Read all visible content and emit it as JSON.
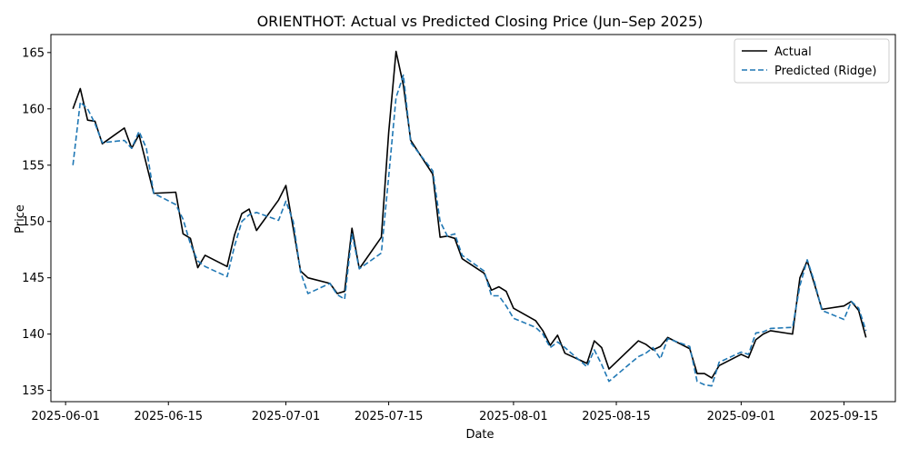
{
  "chart_data": {
    "type": "line",
    "title": "ORIENTHOT: Actual vs Predicted Closing Price (Jun–Sep 2025)",
    "xlabel": "Date",
    "ylabel": "Price",
    "x_ticks": [
      {
        "date": "2025-06-01",
        "label": "2025-06-01"
      },
      {
        "date": "2025-06-15",
        "label": "2025-06-15"
      },
      {
        "date": "2025-07-01",
        "label": "2025-07-01"
      },
      {
        "date": "2025-07-15",
        "label": "2025-07-15"
      },
      {
        "date": "2025-08-01",
        "label": "2025-08-01"
      },
      {
        "date": "2025-08-15",
        "label": "2025-08-15"
      },
      {
        "date": "2025-09-01",
        "label": "2025-09-01"
      },
      {
        "date": "2025-09-15",
        "label": "2025-09-15"
      }
    ],
    "y_ticks": [
      135,
      140,
      145,
      150,
      155,
      160,
      165
    ],
    "xlim": [
      "2025-05-30",
      "2025-09-22"
    ],
    "ylim": [
      134,
      166.6
    ],
    "grid": false,
    "legend": "top-right",
    "series": [
      {
        "name": "Actual",
        "color": "#000000",
        "style": "solid",
        "points": [
          [
            "2025-06-02",
            160.0
          ],
          [
            "2025-06-03",
            161.8
          ],
          [
            "2025-06-04",
            159.0
          ],
          [
            "2025-06-05",
            158.9
          ],
          [
            "2025-06-06",
            156.9
          ],
          [
            "2025-06-09",
            158.3
          ],
          [
            "2025-06-10",
            156.5
          ],
          [
            "2025-06-11",
            157.7
          ],
          [
            "2025-06-13",
            152.5
          ],
          [
            "2025-06-16",
            152.6
          ],
          [
            "2025-06-17",
            148.9
          ],
          [
            "2025-06-18",
            148.5
          ],
          [
            "2025-06-19",
            145.9
          ],
          [
            "2025-06-20",
            147.0
          ],
          [
            "2025-06-23",
            146.0
          ],
          [
            "2025-06-24",
            148.8
          ],
          [
            "2025-06-25",
            150.7
          ],
          [
            "2025-06-26",
            151.1
          ],
          [
            "2025-06-27",
            149.2
          ],
          [
            "2025-06-30",
            151.9
          ],
          [
            "2025-07-01",
            153.2
          ],
          [
            "2025-07-03",
            145.6
          ],
          [
            "2025-07-04",
            145.0
          ],
          [
            "2025-07-07",
            144.5
          ],
          [
            "2025-07-08",
            143.6
          ],
          [
            "2025-07-09",
            143.8
          ],
          [
            "2025-07-10",
            149.4
          ],
          [
            "2025-07-11",
            145.8
          ],
          [
            "2025-07-14",
            148.6
          ],
          [
            "2025-07-15",
            157.9
          ],
          [
            "2025-07-16",
            165.1
          ],
          [
            "2025-07-17",
            162.1
          ],
          [
            "2025-07-18",
            157.2
          ],
          [
            "2025-07-21",
            154.2
          ],
          [
            "2025-07-22",
            148.6
          ],
          [
            "2025-07-23",
            148.7
          ],
          [
            "2025-07-24",
            148.5
          ],
          [
            "2025-07-25",
            146.7
          ],
          [
            "2025-07-28",
            145.4
          ],
          [
            "2025-07-29",
            143.9
          ],
          [
            "2025-07-30",
            144.2
          ],
          [
            "2025-07-31",
            143.8
          ],
          [
            "2025-08-01",
            142.3
          ],
          [
            "2025-08-04",
            141.2
          ],
          [
            "2025-08-05",
            140.3
          ],
          [
            "2025-08-06",
            139.0
          ],
          [
            "2025-08-07",
            139.9
          ],
          [
            "2025-08-08",
            138.3
          ],
          [
            "2025-08-11",
            137.4
          ],
          [
            "2025-08-12",
            139.4
          ],
          [
            "2025-08-13",
            138.8
          ],
          [
            "2025-08-14",
            136.9
          ],
          [
            "2025-08-18",
            139.4
          ],
          [
            "2025-08-19",
            139.1
          ],
          [
            "2025-08-20",
            138.6
          ],
          [
            "2025-08-21",
            138.9
          ],
          [
            "2025-08-22",
            139.7
          ],
          [
            "2025-08-25",
            138.7
          ],
          [
            "2025-08-26",
            136.5
          ],
          [
            "2025-08-27",
            136.5
          ],
          [
            "2025-08-28",
            136.1
          ],
          [
            "2025-08-29",
            137.2
          ],
          [
            "2025-09-01",
            138.2
          ],
          [
            "2025-09-02",
            137.9
          ],
          [
            "2025-09-03",
            139.5
          ],
          [
            "2025-09-04",
            140.0
          ],
          [
            "2025-09-05",
            140.3
          ],
          [
            "2025-09-08",
            140.0
          ],
          [
            "2025-09-09",
            145.0
          ],
          [
            "2025-09-10",
            146.5
          ],
          [
            "2025-09-11",
            144.4
          ],
          [
            "2025-09-12",
            142.2
          ],
          [
            "2025-09-15",
            142.5
          ],
          [
            "2025-09-16",
            142.9
          ],
          [
            "2025-09-17",
            142.1
          ],
          [
            "2025-09-18",
            139.7
          ]
        ]
      },
      {
        "name": "Predicted (Ridge)",
        "color": "#1f77b4",
        "style": "dashed",
        "points": [
          [
            "2025-06-02",
            155.0
          ],
          [
            "2025-06-03",
            160.6
          ],
          [
            "2025-06-04",
            160.0
          ],
          [
            "2025-06-05",
            158.7
          ],
          [
            "2025-06-06",
            157.0
          ],
          [
            "2025-06-09",
            157.2
          ],
          [
            "2025-06-10",
            156.5
          ],
          [
            "2025-06-11",
            158.0
          ],
          [
            "2025-06-12",
            156.5
          ],
          [
            "2025-06-13",
            152.5
          ],
          [
            "2025-06-16",
            151.5
          ],
          [
            "2025-06-17",
            150.2
          ],
          [
            "2025-06-18",
            148.0
          ],
          [
            "2025-06-19",
            146.5
          ],
          [
            "2025-06-20",
            146.0
          ],
          [
            "2025-06-23",
            145.1
          ],
          [
            "2025-06-24",
            147.8
          ],
          [
            "2025-06-25",
            150.0
          ],
          [
            "2025-06-26",
            150.6
          ],
          [
            "2025-06-27",
            150.8
          ],
          [
            "2025-06-30",
            150.1
          ],
          [
            "2025-07-01",
            151.8
          ],
          [
            "2025-07-02",
            150.0
          ],
          [
            "2025-07-03",
            145.5
          ],
          [
            "2025-07-04",
            143.6
          ],
          [
            "2025-07-07",
            144.5
          ],
          [
            "2025-07-08",
            143.5
          ],
          [
            "2025-07-09",
            143.1
          ],
          [
            "2025-07-10",
            148.9
          ],
          [
            "2025-07-11",
            145.8
          ],
          [
            "2025-07-14",
            147.2
          ],
          [
            "2025-07-15",
            154.0
          ],
          [
            "2025-07-16",
            161.0
          ],
          [
            "2025-07-17",
            163.0
          ],
          [
            "2025-07-18",
            157.0
          ],
          [
            "2025-07-21",
            154.5
          ],
          [
            "2025-07-22",
            150.0
          ],
          [
            "2025-07-23",
            148.7
          ],
          [
            "2025-07-24",
            148.9
          ],
          [
            "2025-07-25",
            147.0
          ],
          [
            "2025-07-28",
            145.6
          ],
          [
            "2025-07-29",
            143.4
          ],
          [
            "2025-07-30",
            143.4
          ],
          [
            "2025-07-31",
            142.5
          ],
          [
            "2025-08-01",
            141.4
          ],
          [
            "2025-08-04",
            140.6
          ],
          [
            "2025-08-05",
            140.0
          ],
          [
            "2025-08-06",
            138.8
          ],
          [
            "2025-08-07",
            139.3
          ],
          [
            "2025-08-08",
            138.8
          ],
          [
            "2025-08-11",
            137.1
          ],
          [
            "2025-08-12",
            138.6
          ],
          [
            "2025-08-13",
            137.3
          ],
          [
            "2025-08-14",
            135.8
          ],
          [
            "2025-08-18",
            138.0
          ],
          [
            "2025-08-19",
            138.3
          ],
          [
            "2025-08-20",
            138.8
          ],
          [
            "2025-08-21",
            137.8
          ],
          [
            "2025-08-22",
            139.6
          ],
          [
            "2025-08-25",
            138.9
          ],
          [
            "2025-08-26",
            135.8
          ],
          [
            "2025-08-27",
            135.5
          ],
          [
            "2025-08-28",
            135.4
          ],
          [
            "2025-08-29",
            137.5
          ],
          [
            "2025-09-01",
            138.4
          ],
          [
            "2025-09-02",
            138.2
          ],
          [
            "2025-09-03",
            140.1
          ],
          [
            "2025-09-04",
            140.2
          ],
          [
            "2025-09-05",
            140.5
          ],
          [
            "2025-09-08",
            140.6
          ],
          [
            "2025-09-09",
            144.3
          ],
          [
            "2025-09-10",
            146.6
          ],
          [
            "2025-09-11",
            144.6
          ],
          [
            "2025-09-12",
            142.1
          ],
          [
            "2025-09-15",
            141.3
          ],
          [
            "2025-09-16",
            142.9
          ],
          [
            "2025-09-17",
            142.3
          ],
          [
            "2025-09-18",
            140.3
          ]
        ]
      }
    ]
  }
}
